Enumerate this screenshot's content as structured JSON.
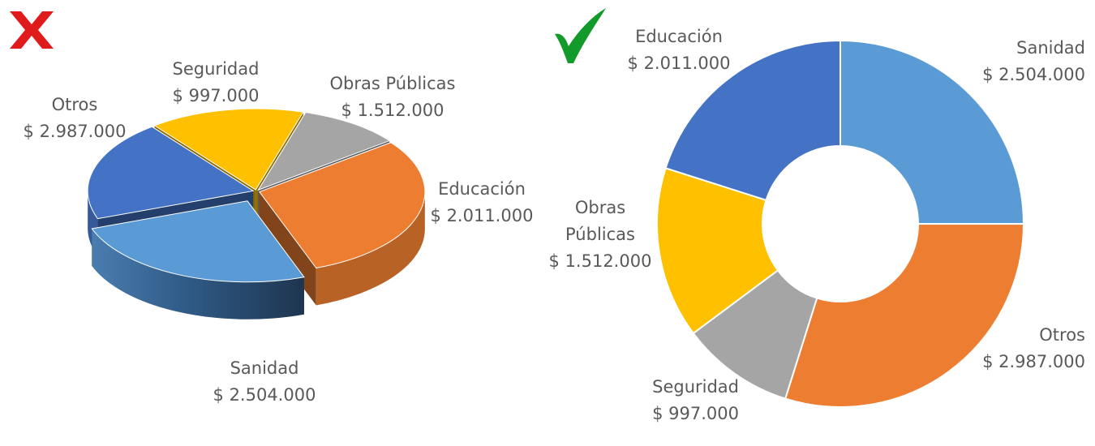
{
  "markers": {
    "bad": {
      "icon": "cross-mark-icon",
      "color": "#e01b1b"
    },
    "good": {
      "icon": "check-mark-icon",
      "color": "#129a2a"
    }
  },
  "chart_data": [
    {
      "type": "pie",
      "variant": "3d-exploded",
      "categories": [
        "Sanidad",
        "Educación",
        "Obras Públicas",
        "Seguridad",
        "Otros"
      ],
      "values": [
        2504000,
        2011000,
        1512000,
        997000,
        2987000
      ],
      "value_labels": [
        "$ 2.504.000",
        "$ 2.011.000",
        "$ 1.512.000",
        "$ 997.000",
        "$ 2.987.000"
      ],
      "colors": [
        "#5b9bd5",
        "#4472c4",
        "#ffc000",
        "#a5a5a5",
        "#ed7d31"
      ],
      "title": "",
      "legend": "none"
    },
    {
      "type": "pie",
      "variant": "donut",
      "categories": [
        "Sanidad",
        "Otros",
        "Seguridad",
        "Obras Públicas",
        "Educación"
      ],
      "category_lines": [
        [
          "Sanidad"
        ],
        [
          "Otros"
        ],
        [
          "Seguridad"
        ],
        [
          "Obras",
          "Públicas"
        ],
        [
          "Educación"
        ]
      ],
      "values": [
        2504000,
        2987000,
        997000,
        1512000,
        2011000
      ],
      "value_labels": [
        "$ 2.504.000",
        "$ 2.987.000",
        "$ 997.000",
        "$ 1.512.000",
        "$ 2.011.000"
      ],
      "colors": [
        "#5b9bd5",
        "#ed7d31",
        "#a5a5a5",
        "#ffc000",
        "#4472c4"
      ],
      "title": "",
      "legend": "none"
    }
  ]
}
